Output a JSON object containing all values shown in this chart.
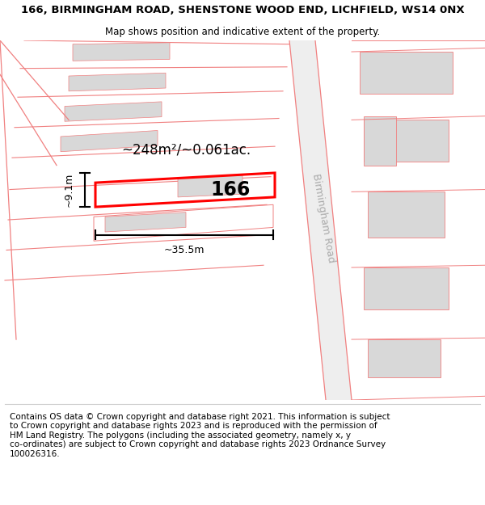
{
  "title_line1": "166, BIRMINGHAM ROAD, SHENSTONE WOOD END, LICHFIELD, WS14 0NX",
  "title_line2": "Map shows position and indicative extent of the property.",
  "footer_text": "Contains OS data © Crown copyright and database right 2021. This information is subject\nto Crown copyright and database rights 2023 and is reproduced with the permission of\nHM Land Registry. The polygons (including the associated geometry, namely x, y\nco-ordinates) are subject to Crown copyright and database rights 2023 Ordnance Survey\n100026316.",
  "bg_color": "#ffffff",
  "map_bg": "#ffffff",
  "building_fill": "#d8d8d8",
  "boundary_color": "#f08080",
  "highlight_color": "#ff0000",
  "label_166": "166",
  "area_label": "~248m²/~0.061ac.",
  "width_label": "~35.5m",
  "height_label": "~9.1m",
  "road_label": "Birmingham Road",
  "title_fontsize": 9.5,
  "subtitle_fontsize": 8.5,
  "footer_fontsize": 7.5
}
